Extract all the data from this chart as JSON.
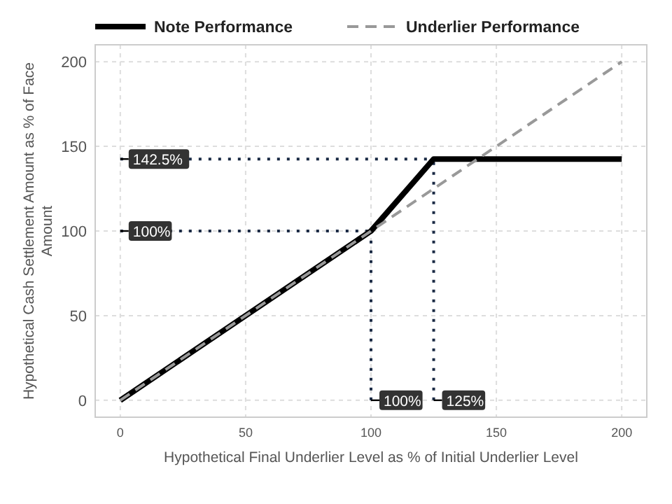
{
  "chart_data": {
    "type": "line",
    "xlabel": "Hypothetical Final Underlier Level as % of Initial Underlier Level",
    "ylabel": "Hypothetical Cash Settlement Amount as % of Face Amount",
    "xlim": [
      -10,
      210
    ],
    "ylim": [
      -10,
      210
    ],
    "xticks": [
      0,
      50,
      100,
      150,
      200
    ],
    "yticks": [
      0,
      50,
      100,
      150,
      200
    ],
    "grid": true,
    "legend": "top",
    "series": [
      {
        "name": "Note Performance",
        "color": "#000000",
        "line_style": "solid",
        "x": [
          0,
          100,
          125,
          200
        ],
        "values": [
          0,
          100,
          142.5,
          142.5
        ]
      },
      {
        "name": "Underlier Performance",
        "color": "#999999",
        "line_style": "dashed",
        "x": [
          0,
          200
        ],
        "values": [
          0,
          200
        ]
      }
    ],
    "ref_lines": [
      {
        "axis": "y",
        "value": 142.5,
        "label": "142.5%",
        "line_style": "dotted",
        "color": "#1a2a44"
      },
      {
        "axis": "y",
        "value": 100,
        "label": "100%",
        "line_style": "dotted",
        "color": "#1a2a44"
      },
      {
        "axis": "x",
        "value": 100,
        "label": "100%",
        "line_style": "dotted",
        "color": "#1a2a44"
      },
      {
        "axis": "x",
        "value": 125,
        "label": "125%",
        "line_style": "dotted",
        "color": "#1a2a44"
      }
    ]
  }
}
